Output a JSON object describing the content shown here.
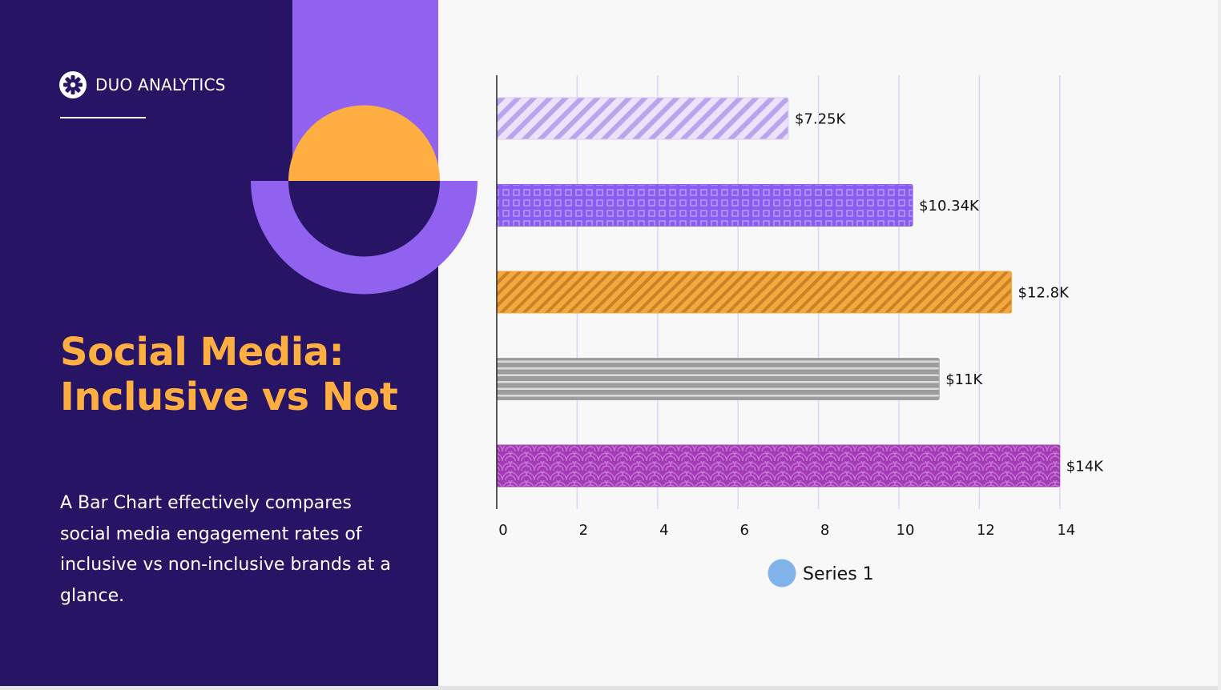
{
  "brand": {
    "name": "DUO ANALYTICS",
    "icon": "gear-icon"
  },
  "title": {
    "line1": "Social Media:",
    "line2": "Inclusive vs Not"
  },
  "description": "A Bar Chart effectively compares social media engagement rates of inclusive vs non-inclusive brands at a glance.",
  "colors": {
    "panel_bg": "#271464",
    "accent_purple": "#9162f0",
    "accent_orange": "#ffae42",
    "page_bg": "#f8f8f8",
    "legend_marker": "#7fb3ea"
  },
  "chart_data": {
    "type": "bar",
    "orientation": "horizontal",
    "title": "",
    "xlabel": "",
    "ylabel": "",
    "xlim": [
      0,
      14
    ],
    "x_ticks": [
      0,
      2,
      4,
      6,
      8,
      10,
      12,
      14
    ],
    "grid": "vertical",
    "legend_position": "bottom",
    "series": [
      {
        "name": "Series 1",
        "values": [
          7.25,
          10.34,
          12.8,
          11,
          14
        ],
        "data_labels": [
          "$7.25K",
          "$10.34K",
          "$12.8K",
          "$11K",
          "$14K"
        ],
        "bar_colors": [
          "#d9cdf5",
          "#8a5df2",
          "#f4a83e",
          "#a0a0a0",
          "#a23bb4"
        ],
        "bar_patterns": [
          "diagonal-stripes",
          "square-grid",
          "diagonal-stripes",
          "horizontal-stripes",
          "scallops"
        ]
      }
    ]
  }
}
